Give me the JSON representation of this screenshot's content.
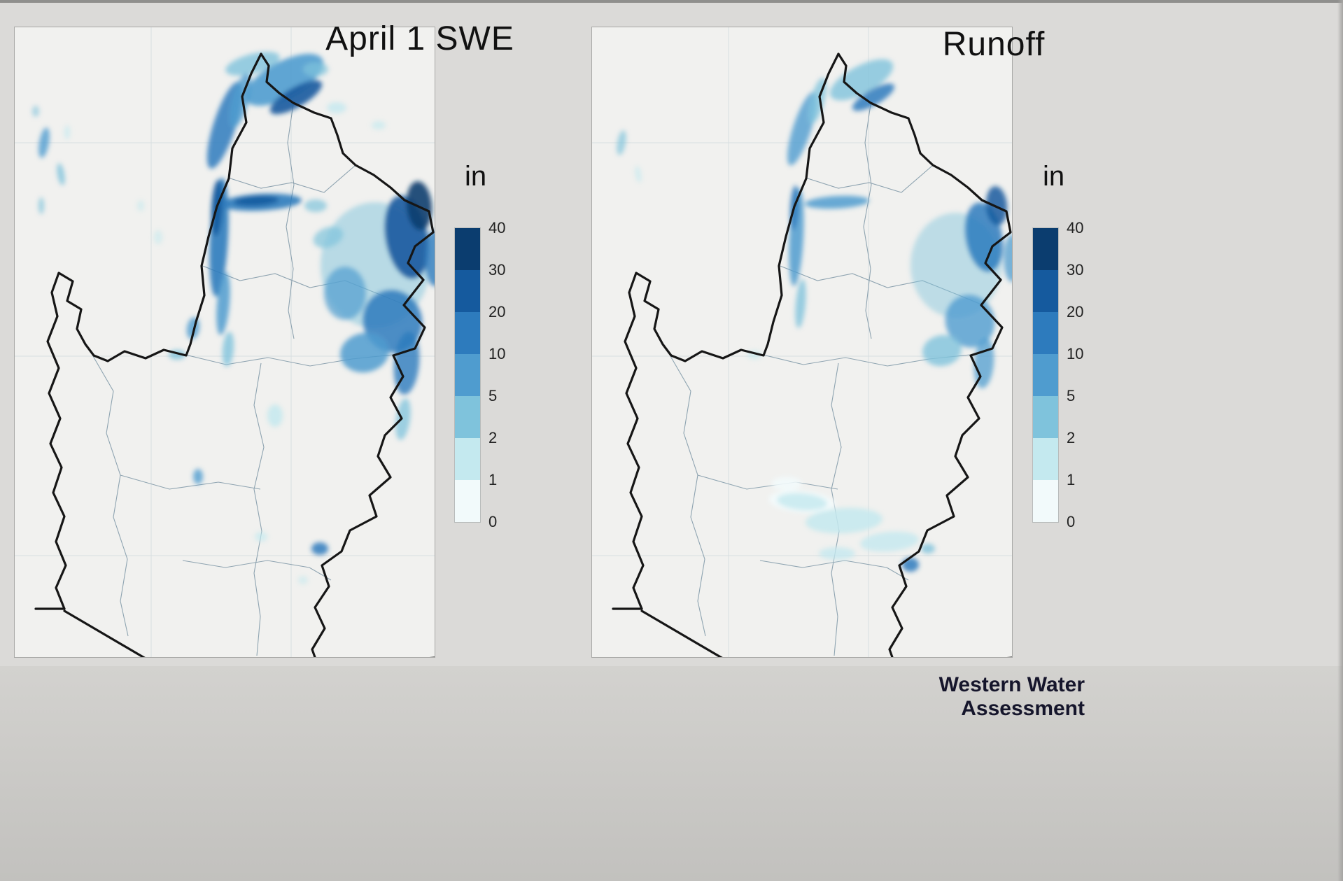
{
  "page": {
    "background": "#dbdad8"
  },
  "maps": [
    {
      "id": "swe",
      "title": "April 1 SWE"
    },
    {
      "id": "runoff",
      "title": "Runoff"
    }
  ],
  "legend": {
    "unit": "in",
    "ticks": [
      "40",
      "30",
      "20",
      "10",
      "5",
      "2",
      "1",
      "0"
    ],
    "colors": [
      "#0b3d6f",
      "#155a9e",
      "#2d7bbd",
      "#4f9ccf",
      "#7fc3dc",
      "#c4e9ef",
      "#f2fafb"
    ]
  },
  "credit": "Western Water Assessment"
}
